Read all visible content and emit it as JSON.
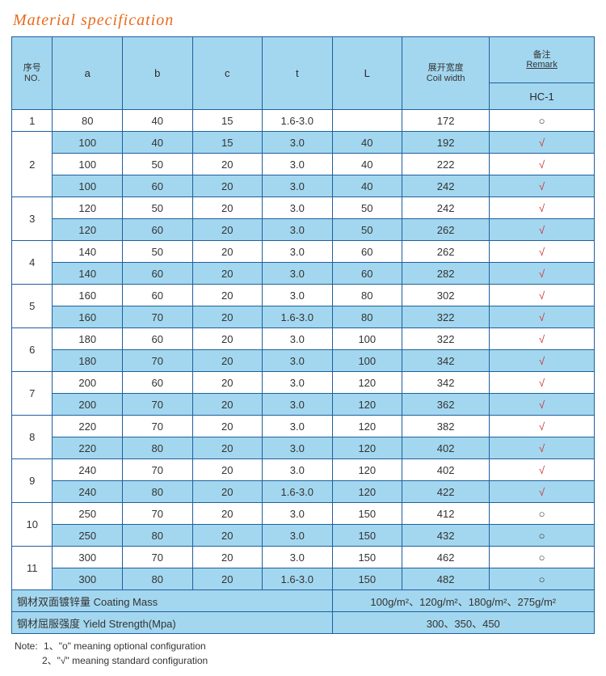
{
  "title": "Material  specification",
  "columns": {
    "no_cn": "序号",
    "no_en": "NO.",
    "a": "a",
    "b": "b",
    "c": "c",
    "t": "t",
    "L": "L",
    "coil_cn": "展开宽度",
    "coil_en": "Coil width",
    "remark_cn": "备注",
    "remark_en": "Remark",
    "remark_sub": "HC-1"
  },
  "col_widths": [
    "7%",
    "12%",
    "12%",
    "12%",
    "12%",
    "12%",
    "15%",
    "18%"
  ],
  "colors": {
    "header_bg": "#a3d7ef",
    "border": "#1f5f9e",
    "title": "#e86b1c",
    "check": "#c33"
  },
  "groups": [
    {
      "no": "1",
      "rows": [
        {
          "a": "80",
          "b": "40",
          "c": "15",
          "t": "1.6-3.0",
          "L": "",
          "cw": "172",
          "r": "○",
          "alt": false
        }
      ]
    },
    {
      "no": "2",
      "rows": [
        {
          "a": "100",
          "b": "40",
          "c": "15",
          "t": "3.0",
          "L": "40",
          "cw": "192",
          "r": "√",
          "alt": true
        },
        {
          "a": "100",
          "b": "50",
          "c": "20",
          "t": "3.0",
          "L": "40",
          "cw": "222",
          "r": "√",
          "alt": false
        },
        {
          "a": "100",
          "b": "60",
          "c": "20",
          "t": "3.0",
          "L": "40",
          "cw": "242",
          "r": "√",
          "alt": true
        }
      ]
    },
    {
      "no": "3",
      "rows": [
        {
          "a": "120",
          "b": "50",
          "c": "20",
          "t": "3.0",
          "L": "50",
          "cw": "242",
          "r": "√",
          "alt": false
        },
        {
          "a": "120",
          "b": "60",
          "c": "20",
          "t": "3.0",
          "L": "50",
          "cw": "262",
          "r": "√",
          "alt": true
        }
      ]
    },
    {
      "no": "4",
      "rows": [
        {
          "a": "140",
          "b": "50",
          "c": "20",
          "t": "3.0",
          "L": "60",
          "cw": "262",
          "r": "√",
          "alt": false
        },
        {
          "a": "140",
          "b": "60",
          "c": "20",
          "t": "3.0",
          "L": "60",
          "cw": "282",
          "r": "√",
          "alt": true
        }
      ]
    },
    {
      "no": "5",
      "rows": [
        {
          "a": "160",
          "b": "60",
          "c": "20",
          "t": "3.0",
          "L": "80",
          "cw": "302",
          "r": "√",
          "alt": false
        },
        {
          "a": "160",
          "b": "70",
          "c": "20",
          "t": "1.6-3.0",
          "L": "80",
          "cw": "322",
          "r": "√",
          "alt": true
        }
      ]
    },
    {
      "no": "6",
      "rows": [
        {
          "a": "180",
          "b": "60",
          "c": "20",
          "t": "3.0",
          "L": "100",
          "cw": "322",
          "r": "√",
          "alt": false
        },
        {
          "a": "180",
          "b": "70",
          "c": "20",
          "t": "3.0",
          "L": "100",
          "cw": "342",
          "r": "√",
          "alt": true
        }
      ]
    },
    {
      "no": "7",
      "rows": [
        {
          "a": "200",
          "b": "60",
          "c": "20",
          "t": "3.0",
          "L": "120",
          "cw": "342",
          "r": "√",
          "alt": false
        },
        {
          "a": "200",
          "b": "70",
          "c": "20",
          "t": "3.0",
          "L": "120",
          "cw": "362",
          "r": "√",
          "alt": true
        }
      ]
    },
    {
      "no": "8",
      "rows": [
        {
          "a": "220",
          "b": "70",
          "c": "20",
          "t": "3.0",
          "L": "120",
          "cw": "382",
          "r": "√",
          "alt": false
        },
        {
          "a": "220",
          "b": "80",
          "c": "20",
          "t": "3.0",
          "L": "120",
          "cw": "402",
          "r": "√",
          "alt": true
        }
      ]
    },
    {
      "no": "9",
      "rows": [
        {
          "a": "240",
          "b": "70",
          "c": "20",
          "t": "3.0",
          "L": "120",
          "cw": "402",
          "r": "√",
          "alt": false
        },
        {
          "a": "240",
          "b": "80",
          "c": "20",
          "t": "1.6-3.0",
          "L": "120",
          "cw": "422",
          "r": "√",
          "alt": true
        }
      ]
    },
    {
      "no": "10",
      "rows": [
        {
          "a": "250",
          "b": "70",
          "c": "20",
          "t": "3.0",
          "L": "150",
          "cw": "412",
          "r": "○",
          "alt": false
        },
        {
          "a": "250",
          "b": "80",
          "c": "20",
          "t": "3.0",
          "L": "150",
          "cw": "432",
          "r": "○",
          "alt": true
        }
      ]
    },
    {
      "no": "11",
      "rows": [
        {
          "a": "300",
          "b": "70",
          "c": "20",
          "t": "3.0",
          "L": "150",
          "cw": "462",
          "r": "○",
          "alt": false
        },
        {
          "a": "300",
          "b": "80",
          "c": "20",
          "t": "1.6-3.0",
          "L": "150",
          "cw": "482",
          "r": "○",
          "alt": true
        }
      ]
    }
  ],
  "footer": [
    {
      "label": "钢材双面镀锌量 Coating Mass",
      "value": "100g/m²、120g/m²、180g/m²、275g/m²"
    },
    {
      "label": "钢材屈服强度 Yield Strength(Mpa)",
      "value": "300、350、450"
    }
  ],
  "note": {
    "prefix": "Note:",
    "line1": "1、\"o\" meaning optional configuration",
    "line2": "2、\"√\" meaning standard configuration"
  }
}
